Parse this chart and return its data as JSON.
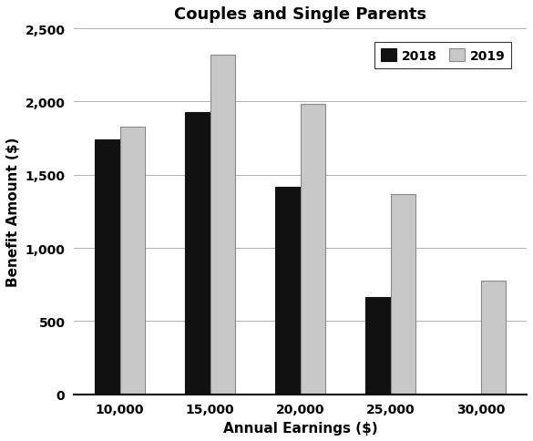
{
  "title": "Couples and Single Parents",
  "xlabel": "Annual Earnings ($)",
  "ylabel": "Benefit Amount ($)",
  "categories": [
    10000,
    15000,
    20000,
    25000,
    30000
  ],
  "category_labels": [
    "10,000",
    "15,000",
    "20,000",
    "25,000",
    "30,000"
  ],
  "series": {
    "2018": [
      1740,
      1930,
      1415,
      665,
      0
    ],
    "2019": [
      1830,
      2320,
      1985,
      1365,
      775
    ]
  },
  "bar_colors": {
    "2018": "#111111",
    "2019": "#c8c8c8"
  },
  "bar_edgecolors": {
    "2018": "#111111",
    "2019": "#888888"
  },
  "ylim": [
    0,
    2500
  ],
  "yticks": [
    0,
    500,
    1000,
    1500,
    2000,
    2500
  ],
  "ytick_labels": [
    "0",
    "500",
    "1,000",
    "1,500",
    "2,000",
    "2,500"
  ],
  "legend_labels": [
    "2018",
    "2019"
  ],
  "bar_width": 0.28,
  "grid": true,
  "title_fontsize": 13,
  "axis_label_fontsize": 11,
  "tick_fontsize": 10,
  "legend_fontsize": 10,
  "figsize": [
    5.85,
    4.85
  ],
  "dpi": 100
}
